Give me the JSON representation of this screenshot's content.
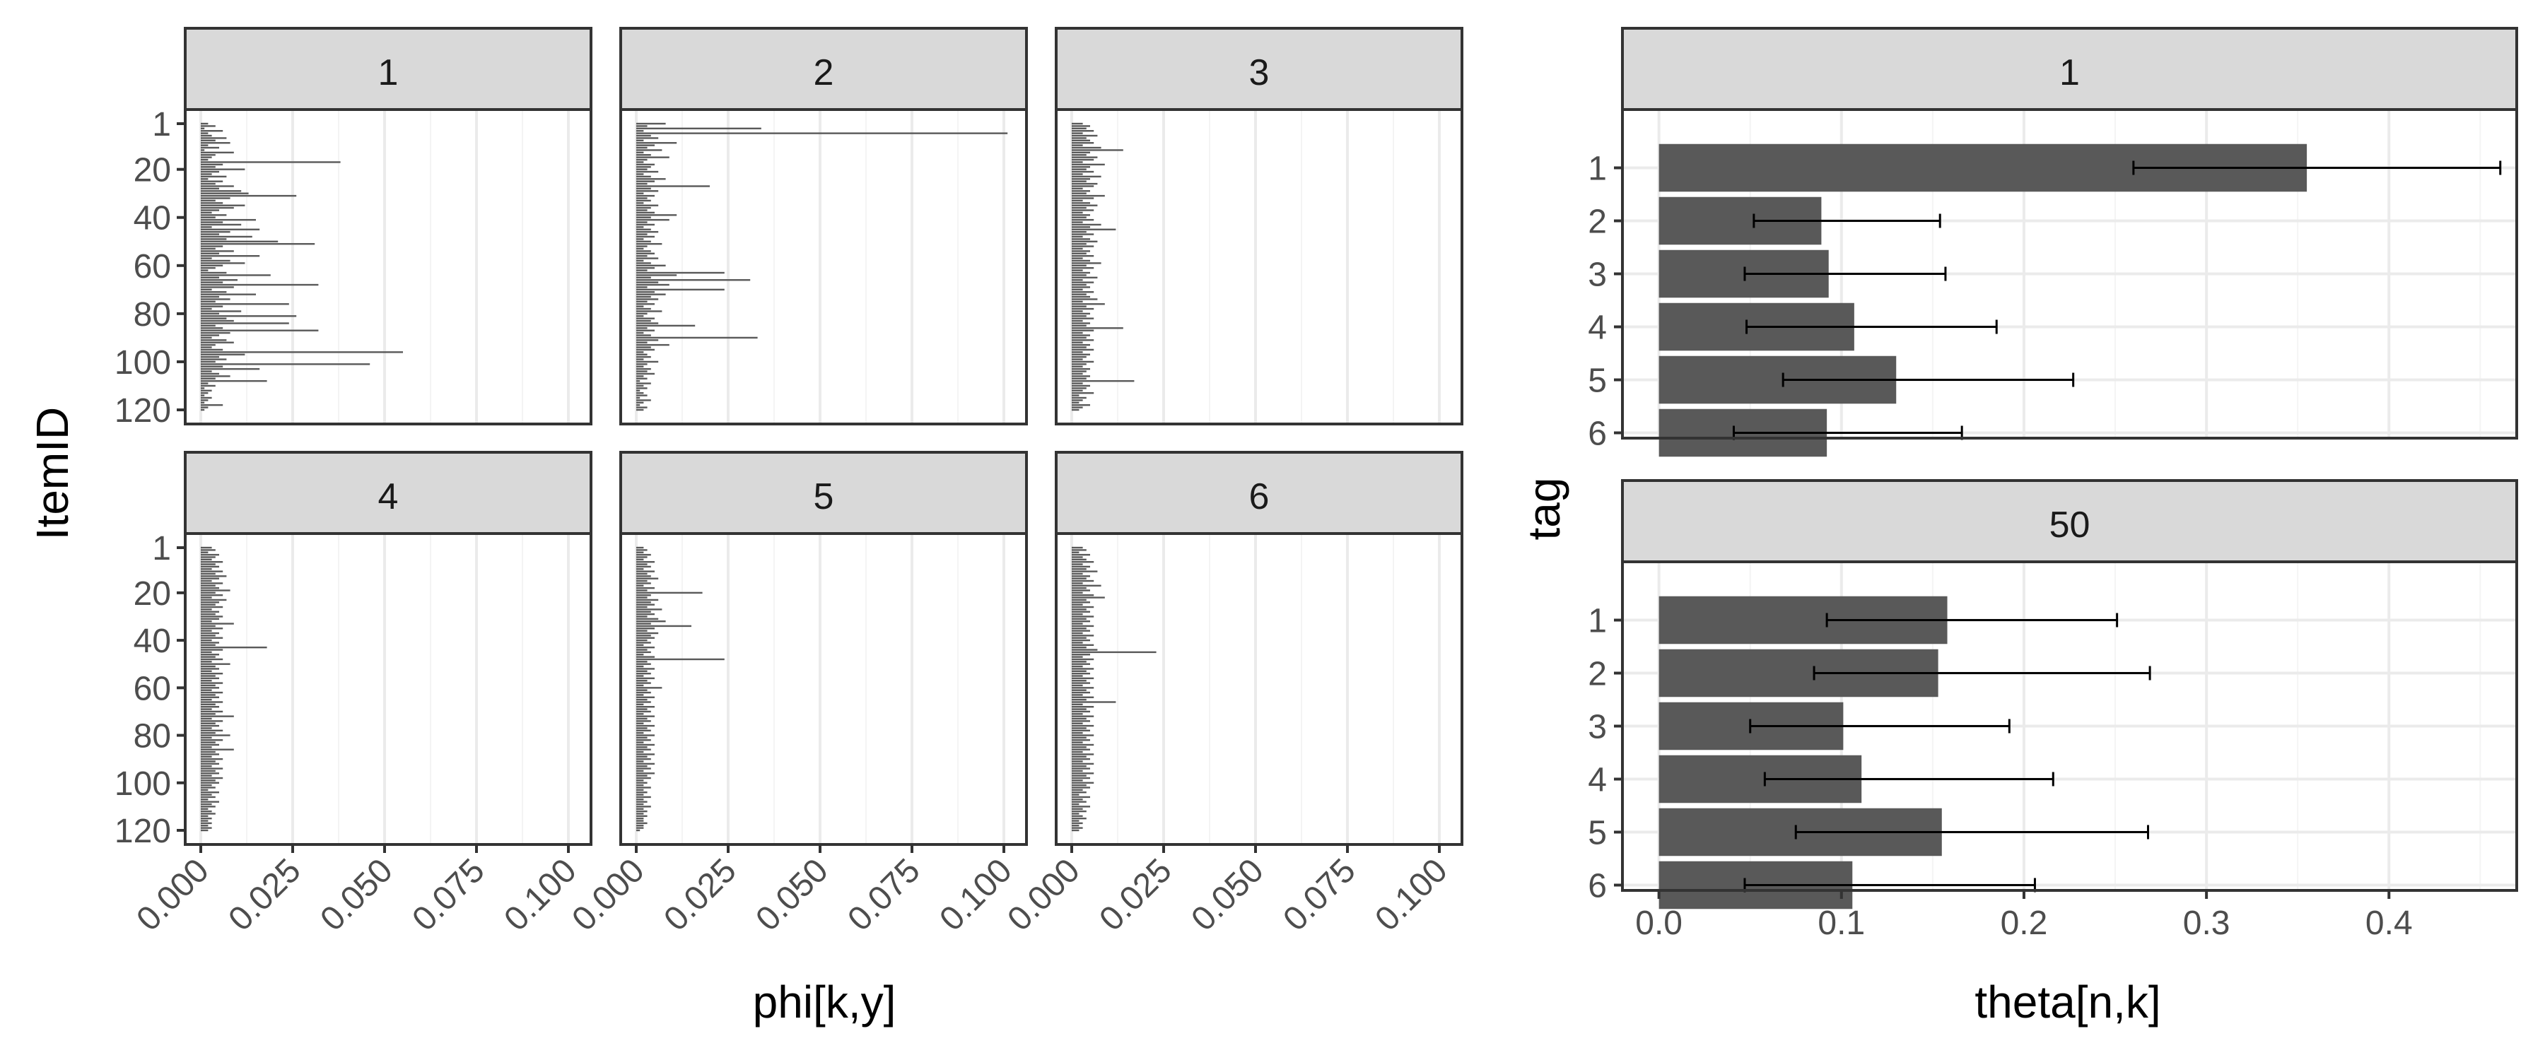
{
  "chart_data": [
    {
      "type": "bar",
      "orientation": "horizontal",
      "facet_layout": "2x3 grid",
      "xlabel": "phi[k,y]",
      "ylabel": "ItemID",
      "xlim": [
        0,
        0.1
      ],
      "x_ticks": [
        "0.000",
        "0.025",
        "0.050",
        "0.075",
        "0.100"
      ],
      "x_tick_values": [
        0,
        0.025,
        0.05,
        0.075,
        0.1
      ],
      "ylim": [
        1,
        120
      ],
      "y_ticks": [
        "1",
        "20",
        "40",
        "60",
        "80",
        "100",
        "120"
      ],
      "y_tick_values": [
        1,
        20,
        40,
        60,
        80,
        100,
        120
      ],
      "grid": true,
      "facets": [
        {
          "label": "1",
          "peaks": [
            [
              17,
              0.038
            ],
            [
              31,
              0.026
            ],
            [
              51,
              0.031
            ],
            [
              68,
              0.032
            ],
            [
              76,
              0.024
            ],
            [
              81,
              0.026
            ],
            [
              84,
              0.024
            ],
            [
              87,
              0.032
            ],
            [
              96,
              0.055
            ],
            [
              101,
              0.046
            ],
            [
              108,
              0.018
            ]
          ],
          "values": [
            0.002,
            0.004,
            0.001,
            0.006,
            0.002,
            0.003,
            0.007,
            0.004,
            0.008,
            0.002,
            0.005,
            0.001,
            0.009,
            0.004,
            0.003,
            0.002,
            0.038,
            0.006,
            0.004,
            0.012,
            0.005,
            0.003,
            0.007,
            0.002,
            0.006,
            0.004,
            0.009,
            0.005,
            0.011,
            0.013,
            0.026,
            0.008,
            0.004,
            0.006,
            0.012,
            0.009,
            0.005,
            0.003,
            0.007,
            0.004,
            0.015,
            0.006,
            0.011,
            0.003,
            0.016,
            0.008,
            0.005,
            0.014,
            0.007,
            0.021,
            0.031,
            0.006,
            0.004,
            0.009,
            0.005,
            0.016,
            0.003,
            0.008,
            0.012,
            0.006,
            0.004,
            0.002,
            0.007,
            0.019,
            0.005,
            0.01,
            0.006,
            0.032,
            0.009,
            0.003,
            0.007,
            0.015,
            0.005,
            0.008,
            0.004,
            0.024,
            0.006,
            0.003,
            0.011,
            0.005,
            0.026,
            0.007,
            0.009,
            0.024,
            0.004,
            0.006,
            0.032,
            0.008,
            0.005,
            0.003,
            0.007,
            0.009,
            0.004,
            0.003,
            0.006,
            0.055,
            0.012,
            0.005,
            0.007,
            0.004,
            0.046,
            0.006,
            0.016,
            0.003,
            0.005,
            0.008,
            0.004,
            0.018,
            0.002,
            0.004,
            0.001,
            0.003,
            0.002,
            0.001,
            0.003,
            0.002,
            0.001,
            0.006,
            0.002,
            0.001
          ]
        },
        {
          "label": "2",
          "peaks": [
            [
              5,
              0.101
            ],
            [
              3,
              0.034
            ],
            [
              27,
              0.02
            ],
            [
              63,
              0.024
            ],
            [
              66,
              0.031
            ],
            [
              70,
              0.024
            ],
            [
              85,
              0.016
            ],
            [
              90,
              0.033
            ]
          ],
          "values": [
            0.008,
            0.003,
            0.034,
            0.002,
            0.101,
            0.004,
            0.006,
            0.002,
            0.011,
            0.005,
            0.003,
            0.007,
            0.002,
            0.004,
            0.009,
            0.003,
            0.002,
            0.005,
            0.004,
            0.003,
            0.006,
            0.002,
            0.004,
            0.008,
            0.005,
            0.003,
            0.02,
            0.004,
            0.006,
            0.002,
            0.005,
            0.003,
            0.004,
            0.002,
            0.006,
            0.004,
            0.003,
            0.005,
            0.011,
            0.004,
            0.009,
            0.003,
            0.005,
            0.002,
            0.004,
            0.006,
            0.003,
            0.005,
            0.002,
            0.004,
            0.007,
            0.003,
            0.002,
            0.004,
            0.005,
            0.003,
            0.006,
            0.002,
            0.004,
            0.008,
            0.005,
            0.003,
            0.024,
            0.011,
            0.004,
            0.031,
            0.006,
            0.009,
            0.003,
            0.024,
            0.005,
            0.008,
            0.004,
            0.006,
            0.003,
            0.005,
            0.002,
            0.004,
            0.007,
            0.003,
            0.002,
            0.005,
            0.004,
            0.006,
            0.016,
            0.003,
            0.005,
            0.002,
            0.004,
            0.033,
            0.006,
            0.003,
            0.009,
            0.004,
            0.005,
            0.002,
            0.003,
            0.004,
            0.002,
            0.006,
            0.003,
            0.002,
            0.004,
            0.003,
            0.005,
            0.002,
            0.003,
            0.001,
            0.004,
            0.002,
            0.003,
            0.001,
            0.002,
            0.003,
            0.001,
            0.004,
            0.002,
            0.001,
            0.003,
            0.002
          ]
        },
        {
          "label": "3",
          "peaks": [
            [
              12,
              0.014
            ],
            [
              86,
              0.014
            ],
            [
              108,
              0.017
            ]
          ],
          "values": [
            0.003,
            0.005,
            0.004,
            0.006,
            0.003,
            0.007,
            0.004,
            0.005,
            0.006,
            0.003,
            0.008,
            0.014,
            0.005,
            0.004,
            0.007,
            0.006,
            0.003,
            0.009,
            0.005,
            0.004,
            0.006,
            0.003,
            0.008,
            0.005,
            0.004,
            0.007,
            0.006,
            0.003,
            0.005,
            0.004,
            0.009,
            0.006,
            0.003,
            0.005,
            0.007,
            0.004,
            0.006,
            0.003,
            0.005,
            0.004,
            0.006,
            0.003,
            0.008,
            0.005,
            0.012,
            0.004,
            0.006,
            0.003,
            0.005,
            0.007,
            0.004,
            0.006,
            0.003,
            0.005,
            0.004,
            0.006,
            0.003,
            0.005,
            0.008,
            0.004,
            0.006,
            0.003,
            0.005,
            0.004,
            0.007,
            0.003,
            0.006,
            0.004,
            0.005,
            0.003,
            0.006,
            0.004,
            0.005,
            0.007,
            0.003,
            0.009,
            0.004,
            0.006,
            0.003,
            0.005,
            0.004,
            0.006,
            0.003,
            0.005,
            0.004,
            0.014,
            0.006,
            0.003,
            0.005,
            0.004,
            0.006,
            0.003,
            0.005,
            0.004,
            0.006,
            0.003,
            0.005,
            0.004,
            0.003,
            0.006,
            0.004,
            0.003,
            0.005,
            0.004,
            0.003,
            0.005,
            0.004,
            0.017,
            0.003,
            0.005,
            0.004,
            0.003,
            0.006,
            0.002,
            0.004,
            0.003,
            0.002,
            0.005,
            0.003,
            0.002
          ]
        },
        {
          "label": "4",
          "peaks": [
            [
              43,
              0.018
            ]
          ],
          "values": [
            0.003,
            0.004,
            0.002,
            0.005,
            0.004,
            0.003,
            0.006,
            0.004,
            0.005,
            0.003,
            0.006,
            0.004,
            0.007,
            0.005,
            0.003,
            0.006,
            0.004,
            0.005,
            0.008,
            0.004,
            0.006,
            0.003,
            0.007,
            0.005,
            0.004,
            0.006,
            0.003,
            0.005,
            0.004,
            0.006,
            0.005,
            0.003,
            0.009,
            0.004,
            0.006,
            0.003,
            0.005,
            0.004,
            0.006,
            0.003,
            0.005,
            0.004,
            0.018,
            0.006,
            0.003,
            0.005,
            0.004,
            0.006,
            0.003,
            0.008,
            0.004,
            0.005,
            0.003,
            0.006,
            0.004,
            0.005,
            0.003,
            0.006,
            0.004,
            0.005,
            0.003,
            0.006,
            0.004,
            0.005,
            0.003,
            0.006,
            0.004,
            0.005,
            0.003,
            0.006,
            0.004,
            0.009,
            0.003,
            0.006,
            0.004,
            0.005,
            0.003,
            0.006,
            0.004,
            0.008,
            0.003,
            0.006,
            0.004,
            0.005,
            0.003,
            0.009,
            0.004,
            0.005,
            0.003,
            0.006,
            0.004,
            0.005,
            0.003,
            0.006,
            0.004,
            0.005,
            0.003,
            0.006,
            0.004,
            0.005,
            0.003,
            0.004,
            0.002,
            0.005,
            0.003,
            0.004,
            0.002,
            0.005,
            0.003,
            0.004,
            0.002,
            0.003,
            0.004,
            0.002,
            0.003,
            0.002,
            0.003,
            0.002,
            0.003,
            0.002
          ]
        },
        {
          "label": "5",
          "peaks": [
            [
              20,
              0.018
            ],
            [
              34,
              0.015
            ],
            [
              48,
              0.024
            ]
          ],
          "values": [
            0.002,
            0.003,
            0.002,
            0.004,
            0.003,
            0.002,
            0.005,
            0.003,
            0.004,
            0.002,
            0.005,
            0.003,
            0.004,
            0.006,
            0.003,
            0.004,
            0.002,
            0.005,
            0.003,
            0.018,
            0.004,
            0.003,
            0.006,
            0.004,
            0.005,
            0.003,
            0.007,
            0.004,
            0.005,
            0.003,
            0.006,
            0.008,
            0.004,
            0.015,
            0.005,
            0.003,
            0.006,
            0.004,
            0.005,
            0.003,
            0.004,
            0.002,
            0.005,
            0.003,
            0.004,
            0.002,
            0.005,
            0.024,
            0.003,
            0.004,
            0.002,
            0.005,
            0.003,
            0.004,
            0.002,
            0.005,
            0.003,
            0.004,
            0.002,
            0.007,
            0.003,
            0.004,
            0.002,
            0.005,
            0.003,
            0.004,
            0.002,
            0.005,
            0.003,
            0.004,
            0.002,
            0.005,
            0.003,
            0.004,
            0.002,
            0.005,
            0.003,
            0.004,
            0.002,
            0.005,
            0.003,
            0.004,
            0.002,
            0.005,
            0.003,
            0.004,
            0.002,
            0.005,
            0.003,
            0.004,
            0.002,
            0.005,
            0.003,
            0.004,
            0.002,
            0.005,
            0.003,
            0.004,
            0.002,
            0.003,
            0.002,
            0.004,
            0.002,
            0.003,
            0.002,
            0.004,
            0.002,
            0.003,
            0.002,
            0.004,
            0.002,
            0.003,
            0.002,
            0.003,
            0.002,
            0.002,
            0.003,
            0.002,
            0.002,
            0.001
          ]
        },
        {
          "label": "6",
          "peaks": [
            [
              45,
              0.023
            ]
          ],
          "values": [
            0.003,
            0.004,
            0.002,
            0.005,
            0.003,
            0.004,
            0.006,
            0.003,
            0.005,
            0.004,
            0.007,
            0.003,
            0.005,
            0.004,
            0.006,
            0.003,
            0.008,
            0.004,
            0.005,
            0.003,
            0.006,
            0.009,
            0.004,
            0.005,
            0.003,
            0.006,
            0.004,
            0.005,
            0.003,
            0.006,
            0.004,
            0.005,
            0.003,
            0.006,
            0.004,
            0.005,
            0.003,
            0.006,
            0.004,
            0.005,
            0.003,
            0.006,
            0.004,
            0.007,
            0.023,
            0.005,
            0.003,
            0.006,
            0.004,
            0.005,
            0.003,
            0.006,
            0.004,
            0.005,
            0.003,
            0.006,
            0.004,
            0.005,
            0.003,
            0.006,
            0.004,
            0.005,
            0.003,
            0.006,
            0.004,
            0.012,
            0.003,
            0.006,
            0.004,
            0.005,
            0.003,
            0.006,
            0.004,
            0.005,
            0.003,
            0.006,
            0.004,
            0.005,
            0.003,
            0.006,
            0.004,
            0.005,
            0.003,
            0.006,
            0.004,
            0.005,
            0.003,
            0.006,
            0.004,
            0.005,
            0.003,
            0.006,
            0.004,
            0.005,
            0.003,
            0.006,
            0.004,
            0.005,
            0.003,
            0.006,
            0.004,
            0.005,
            0.003,
            0.004,
            0.002,
            0.005,
            0.003,
            0.004,
            0.002,
            0.005,
            0.003,
            0.004,
            0.002,
            0.003,
            0.004,
            0.002,
            0.003,
            0.002,
            0.003,
            0.002
          ]
        }
      ]
    },
    {
      "type": "bar",
      "orientation": "horizontal",
      "error_bars": true,
      "xlabel": "theta[n,k]",
      "ylabel": "tag",
      "xlim": [
        -0.02,
        0.47
      ],
      "x_ticks": [
        "0.0",
        "0.1",
        "0.2",
        "0.3",
        "0.4"
      ],
      "x_tick_values": [
        0,
        0.1,
        0.2,
        0.3,
        0.4
      ],
      "categories": [
        "1",
        "2",
        "3",
        "4",
        "5",
        "6"
      ],
      "grid": true,
      "facets": [
        {
          "label": "1",
          "values": [
            0.355,
            0.089,
            0.093,
            0.107,
            0.13,
            0.092
          ],
          "lower": [
            0.26,
            0.052,
            0.047,
            0.048,
            0.068,
            0.041
          ],
          "upper": [
            0.461,
            0.154,
            0.157,
            0.185,
            0.227,
            0.166
          ]
        },
        {
          "label": "50",
          "values": [
            0.158,
            0.153,
            0.101,
            0.111,
            0.155,
            0.106
          ],
          "lower": [
            0.092,
            0.085,
            0.05,
            0.058,
            0.075,
            0.047
          ],
          "upper": [
            0.251,
            0.269,
            0.192,
            0.216,
            0.268,
            0.206
          ]
        }
      ]
    }
  ]
}
